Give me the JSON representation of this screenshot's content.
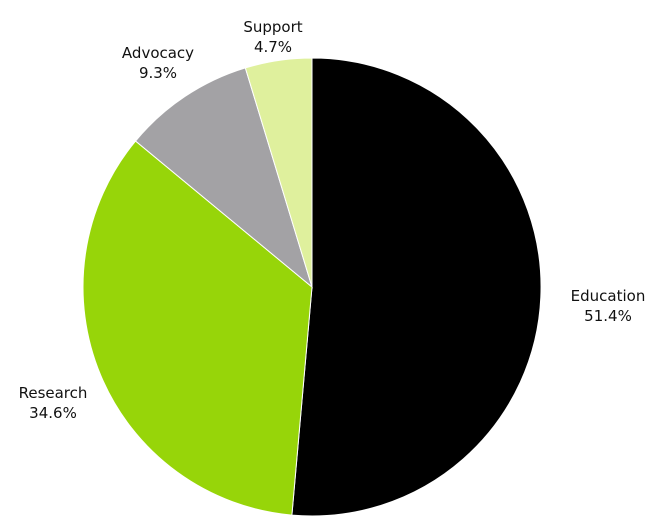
{
  "chart_data": {
    "type": "pie",
    "title": "",
    "slices": [
      {
        "label": "Education",
        "value": 51.4,
        "display": "51.4%",
        "color": "#000000"
      },
      {
        "label": "Research",
        "value": 34.6,
        "display": "34.6%",
        "color": "#97d509"
      },
      {
        "label": "Advocacy",
        "value": 9.3,
        "display": "9.3%",
        "color": "#a3a2a5"
      },
      {
        "label": "Support",
        "value": 4.7,
        "display": "4.7%",
        "color": "#dff09d"
      }
    ],
    "start_angle_deg": 0,
    "direction": "clockwise",
    "legend": "none",
    "labels": "outside"
  }
}
